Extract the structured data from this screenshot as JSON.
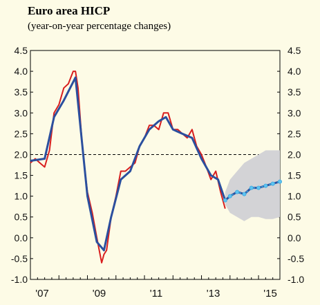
{
  "header": {
    "title": "Euro area HICP",
    "subtitle": "(year-on-year percentage changes)"
  },
  "colors": {
    "background": "#fdfbe6",
    "actual": "#d81e1e",
    "trend": "#2b4f9e",
    "projection": "#3aa8e0",
    "projection_markers": "#5ec4f0",
    "band": "#d3d3d6",
    "target_line": "#000000"
  },
  "chart_data": {
    "type": "line",
    "title": "Euro area HICP",
    "subtitle": "(year-on-year percentage changes)",
    "ylim": [
      -1.0,
      4.5
    ],
    "yticks": [
      "4.5",
      "4.0",
      "3.5",
      "3.0",
      "2.5",
      "2.0",
      "1.5",
      "1.0",
      "0.5",
      "0.0",
      "-0.5",
      "-1.0"
    ],
    "ytick_values": [
      4.5,
      4.0,
      3.5,
      3.0,
      2.5,
      2.0,
      1.5,
      1.0,
      0.5,
      0.0,
      -0.5,
      -1.0
    ],
    "xlim": [
      2007.0,
      2015.75
    ],
    "xticks": [
      "'07",
      "'09",
      "'11",
      "'13",
      "'15"
    ],
    "xtick_values": [
      2007.0,
      2009.0,
      2011.0,
      2013.0,
      2015.0
    ],
    "reference_line": {
      "y": 2.0,
      "style": "dashed"
    },
    "series": [
      {
        "role": "actual",
        "x": [
          2007.0,
          2007.17,
          2007.33,
          2007.5,
          2007.67,
          2007.83,
          2008.0,
          2008.17,
          2008.33,
          2008.5,
          2008.58,
          2008.67,
          2008.83,
          2009.0,
          2009.17,
          2009.33,
          2009.5,
          2009.58,
          2009.67,
          2009.83,
          2010.0,
          2010.17,
          2010.33,
          2010.5,
          2010.67,
          2010.83,
          2011.0,
          2011.17,
          2011.33,
          2011.5,
          2011.67,
          2011.83,
          2012.0,
          2012.17,
          2012.33,
          2012.5,
          2012.67,
          2012.83,
          2013.0,
          2013.17,
          2013.33,
          2013.5,
          2013.67,
          2013.83
        ],
        "y": [
          1.8,
          1.9,
          1.8,
          1.7,
          2.1,
          3.0,
          3.2,
          3.6,
          3.7,
          4.0,
          4.0,
          3.6,
          2.1,
          1.1,
          0.6,
          0.0,
          -0.6,
          -0.4,
          -0.3,
          0.5,
          1.0,
          1.6,
          1.6,
          1.7,
          1.8,
          2.2,
          2.4,
          2.7,
          2.7,
          2.6,
          3.0,
          3.0,
          2.6,
          2.6,
          2.5,
          2.4,
          2.6,
          2.2,
          2.0,
          1.7,
          1.4,
          1.6,
          1.1,
          0.7
        ]
      },
      {
        "role": "trend",
        "x": [
          2007.0,
          2007.5,
          2007.83,
          2008.17,
          2008.58,
          2009.0,
          2009.33,
          2009.58,
          2009.83,
          2010.17,
          2010.5,
          2010.83,
          2011.17,
          2011.5,
          2011.75,
          2012.0,
          2012.33,
          2012.67,
          2013.0,
          2013.33,
          2013.58,
          2013.83
        ],
        "y": [
          1.85,
          1.9,
          2.9,
          3.3,
          3.85,
          1.0,
          -0.1,
          -0.3,
          0.5,
          1.4,
          1.6,
          2.2,
          2.6,
          2.8,
          2.9,
          2.6,
          2.5,
          2.4,
          1.9,
          1.5,
          1.4,
          0.9
        ]
      },
      {
        "role": "projection",
        "x": [
          2013.83,
          2014.0,
          2014.25,
          2014.5,
          2014.75,
          2015.0,
          2015.25,
          2015.5,
          2015.75
        ],
        "y": [
          0.9,
          1.0,
          1.1,
          1.05,
          1.2,
          1.2,
          1.25,
          1.3,
          1.35
        ]
      },
      {
        "role": "projection_range",
        "x": [
          2013.83,
          2014.0,
          2014.25,
          2014.5,
          2014.75,
          2015.0,
          2015.25,
          2015.5,
          2015.75
        ],
        "upper": [
          1.1,
          1.4,
          1.6,
          1.8,
          1.9,
          2.0,
          2.1,
          2.1,
          2.1
        ],
        "lower": [
          0.8,
          0.6,
          0.5,
          0.4,
          0.5,
          0.5,
          0.45,
          0.45,
          0.5
        ]
      }
    ]
  }
}
